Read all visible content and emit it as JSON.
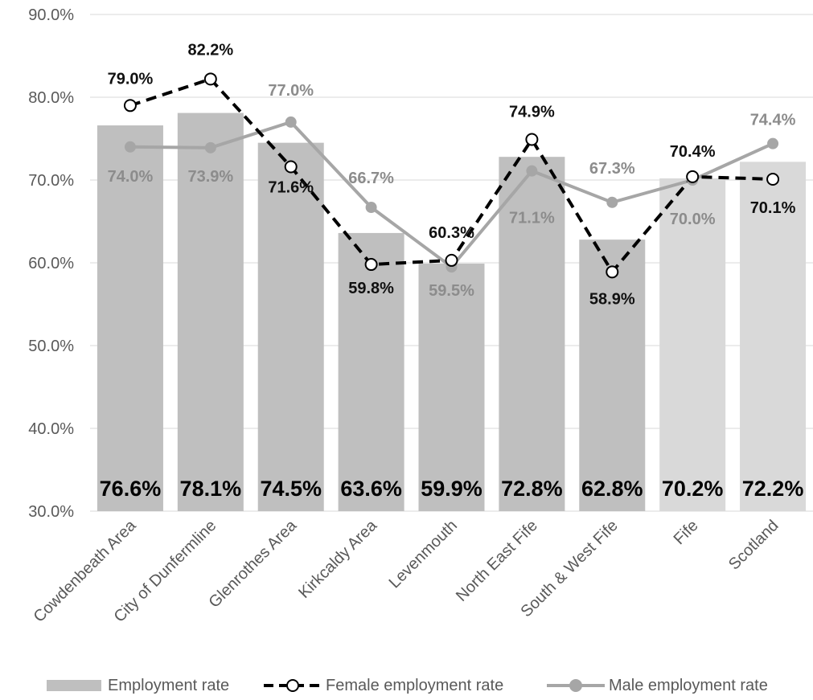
{
  "chart_data": {
    "type": "bar",
    "categories": [
      "Cowdenbeath Area",
      "City of Dunfermline",
      "Glenrothes Area",
      "Kirkcaldy Area",
      "Levenmouth",
      "North East Fife",
      "South & West Fife",
      "Fife",
      "Scotland"
    ],
    "series": [
      {
        "name": "Employment rate",
        "type": "bar",
        "values": [
          76.6,
          78.1,
          74.5,
          63.6,
          59.9,
          72.8,
          62.8,
          70.2,
          72.2
        ],
        "labels": [
          "76.6%",
          "78.1%",
          "74.5%",
          "63.6%",
          "59.9%",
          "72.8%",
          "62.8%",
          "70.2%",
          "72.2%"
        ],
        "colors": [
          "#bfbfbf",
          "#bfbfbf",
          "#bfbfbf",
          "#bfbfbf",
          "#bfbfbf",
          "#bfbfbf",
          "#bfbfbf",
          "#d9d9d9",
          "#d9d9d9"
        ]
      },
      {
        "name": "Female employment rate",
        "type": "line",
        "style": "dashed",
        "color": "#000000",
        "values": [
          79.0,
          82.2,
          71.6,
          59.8,
          60.3,
          74.9,
          58.9,
          70.4,
          70.1
        ],
        "labels": [
          "79.0%",
          "82.2%",
          "71.6%",
          "59.8%",
          "60.3%",
          "74.9%",
          "58.9%",
          "70.4%",
          "70.1%"
        ]
      },
      {
        "name": "Male employment rate",
        "type": "line",
        "style": "solid",
        "color": "#a6a6a6",
        "values": [
          74.0,
          73.9,
          77.0,
          66.7,
          59.5,
          71.1,
          67.3,
          70.0,
          74.4
        ],
        "labels": [
          "74.0%",
          "73.9%",
          "77.0%",
          "66.7%",
          "59.5%",
          "71.1%",
          "67.3%",
          "70.0%",
          "74.4%"
        ]
      }
    ],
    "yticks": [
      "30.0%",
      "40.0%",
      "50.0%",
      "60.0%",
      "70.0%",
      "80.0%",
      "90.0%"
    ],
    "ylim": [
      30,
      90
    ],
    "grid": true,
    "legend_position": "bottom"
  },
  "legend": {
    "bar": "Employment rate",
    "female": "Female employment rate",
    "male": "Male employment rate"
  }
}
